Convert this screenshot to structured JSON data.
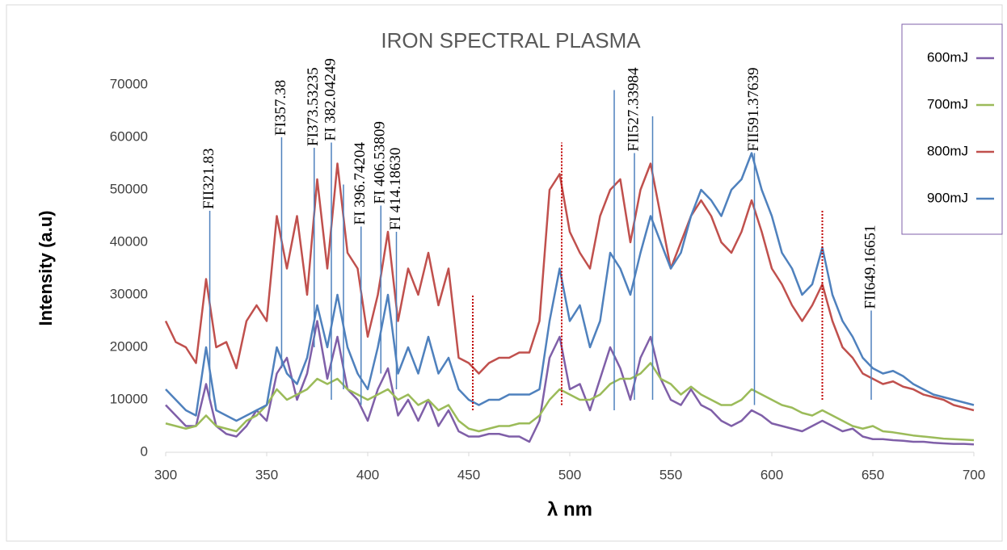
{
  "chart_data": {
    "type": "line",
    "title": "IRON SPECTRAL PLASMA",
    "x_label": "λ nm",
    "y_label": "Intensity (a.u)",
    "x": [
      300,
      305,
      310,
      315,
      320,
      325,
      330,
      335,
      340,
      345,
      350,
      355,
      360,
      365,
      370,
      375,
      380,
      385,
      390,
      395,
      400,
      405,
      410,
      415,
      420,
      425,
      430,
      435,
      440,
      445,
      450,
      455,
      460,
      465,
      470,
      475,
      480,
      485,
      490,
      495,
      500,
      505,
      510,
      515,
      520,
      525,
      530,
      535,
      540,
      545,
      550,
      555,
      560,
      565,
      570,
      575,
      580,
      585,
      590,
      595,
      600,
      605,
      610,
      615,
      620,
      625,
      630,
      635,
      640,
      645,
      650,
      655,
      660,
      665,
      670,
      675,
      680,
      685,
      690,
      695,
      700
    ],
    "series": [
      {
        "name": "600mJ",
        "color": "#7f5fa8",
        "values": [
          9000,
          7000,
          5000,
          5000,
          13000,
          5000,
          3500,
          3000,
          5000,
          8000,
          6000,
          15000,
          18000,
          10000,
          15000,
          25000,
          14000,
          22000,
          12000,
          10000,
          6000,
          12000,
          16000,
          7000,
          10000,
          6000,
          10000,
          5000,
          8000,
          4000,
          3000,
          3000,
          3500,
          3500,
          3000,
          3000,
          2000,
          6000,
          18000,
          22000,
          12000,
          13000,
          8000,
          14000,
          20000,
          16000,
          10000,
          18000,
          22000,
          14000,
          10000,
          9000,
          12000,
          9000,
          8000,
          6000,
          5000,
          6000,
          8000,
          7000,
          5500,
          5000,
          4500,
          4000,
          5000,
          6000,
          5000,
          4000,
          4500,
          3000,
          2500,
          2500,
          2300,
          2200,
          2000,
          2000,
          1800,
          1700,
          1600,
          1600,
          1500
        ]
      },
      {
        "name": "700mJ",
        "color": "#9bbb59",
        "values": [
          5500,
          5000,
          4500,
          5000,
          7000,
          5000,
          4500,
          4000,
          6000,
          7000,
          9000,
          12000,
          10000,
          11000,
          12000,
          14000,
          13000,
          14000,
          12000,
          11000,
          10000,
          11000,
          12000,
          10000,
          11000,
          9000,
          10000,
          8000,
          9000,
          6000,
          4500,
          4000,
          4500,
          5000,
          5000,
          5500,
          5500,
          7000,
          10000,
          12000,
          11000,
          10000,
          10000,
          11000,
          13000,
          14000,
          14000,
          15000,
          17000,
          14000,
          13000,
          11000,
          12500,
          11000,
          10000,
          9000,
          9000,
          10000,
          12000,
          11000,
          10000,
          9000,
          8500,
          7500,
          7000,
          8000,
          7000,
          6000,
          5000,
          4500,
          5000,
          4000,
          3800,
          3500,
          3200,
          3000,
          2800,
          2600,
          2500,
          2400,
          2300
        ]
      },
      {
        "name": "800mJ",
        "color": "#c0504d",
        "values": [
          25000,
          21000,
          20000,
          17000,
          33000,
          20000,
          21000,
          16000,
          25000,
          28000,
          25000,
          45000,
          35000,
          45000,
          30000,
          52000,
          35000,
          55000,
          38000,
          35000,
          22000,
          30000,
          42000,
          25000,
          35000,
          30000,
          38000,
          28000,
          35000,
          18000,
          17000,
          15000,
          17000,
          18000,
          18000,
          19000,
          19000,
          25000,
          50000,
          53000,
          42000,
          38000,
          35000,
          45000,
          50000,
          52000,
          40000,
          50000,
          55000,
          45000,
          35000,
          40000,
          45000,
          48000,
          45000,
          40000,
          38000,
          42000,
          48000,
          42000,
          35000,
          32000,
          28000,
          25000,
          28000,
          32000,
          25000,
          20000,
          18000,
          15000,
          14000,
          13000,
          13500,
          12500,
          12000,
          11000,
          10500,
          10000,
          9000,
          8500,
          8000
        ]
      },
      {
        "name": "900mJ",
        "color": "#4f81bd",
        "values": [
          12000,
          10000,
          8000,
          7000,
          20000,
          8000,
          7000,
          6000,
          7000,
          8000,
          9000,
          20000,
          15000,
          13000,
          18000,
          28000,
          20000,
          30000,
          20000,
          15000,
          12000,
          20000,
          30000,
          15000,
          20000,
          15000,
          22000,
          15000,
          18000,
          12000,
          10000,
          9000,
          10000,
          10000,
          11000,
          11000,
          11000,
          12000,
          25000,
          35000,
          25000,
          28000,
          20000,
          25000,
          38000,
          35000,
          30000,
          38000,
          45000,
          40000,
          35000,
          38000,
          45000,
          50000,
          48000,
          45000,
          50000,
          52000,
          57000,
          50000,
          45000,
          38000,
          35000,
          30000,
          32000,
          39000,
          30000,
          25000,
          22000,
          18000,
          16000,
          15000,
          15500,
          14500,
          13000,
          12000,
          11000,
          10500,
          10000,
          9500,
          9000
        ]
      }
    ],
    "annotations": [
      {
        "label": "FII321.83",
        "x": 321.83,
        "y": [
          10000,
          46000
        ]
      },
      {
        "label": "FI357.38",
        "x": 357.38,
        "y": [
          16000,
          60000
        ]
      },
      {
        "label": "FI373.53235",
        "x": 373.5,
        "y": [
          20000,
          58000
        ]
      },
      {
        "label": "FI 382.04249",
        "x": 382,
        "y": [
          10000,
          59000
        ]
      },
      {
        "label": null,
        "x": 388,
        "y": [
          12000,
          51000
        ]
      },
      {
        "label": "FI 396.74204",
        "x": 396.7,
        "y": [
          9000,
          43000
        ]
      },
      {
        "label": "FI 406.53809",
        "x": 406.5,
        "y": [
          15000,
          47000
        ]
      },
      {
        "label": "FI 414.18630",
        "x": 414.2,
        "y": [
          12000,
          42000
        ]
      },
      {
        "label": null,
        "x": 522,
        "y": [
          8000,
          69000
        ]
      },
      {
        "label": "FII527.33984",
        "x": 532,
        "y": [
          10000,
          57000
        ]
      },
      {
        "label": null,
        "x": 541,
        "y": [
          10000,
          64000
        ]
      },
      {
        "label": "FII591.37639",
        "x": 591.4,
        "y": [
          9000,
          57000
        ]
      },
      {
        "label": "FII649.16651",
        "x": 649.2,
        "y": [
          10000,
          27000
        ]
      }
    ],
    "dotted_lines": [
      {
        "x": 452,
        "y": [
          8000,
          30000
        ]
      },
      {
        "x": 496,
        "y": [
          9000,
          59000
        ]
      },
      {
        "x": 625,
        "y": [
          10000,
          46000
        ]
      }
    ],
    "xlim": [
      300,
      700
    ],
    "xticks": [
      300,
      350,
      400,
      450,
      500,
      550,
      600,
      650,
      700
    ],
    "ylim": [
      0,
      70000
    ],
    "yticks": [
      0,
      10000,
      20000,
      30000,
      40000,
      50000,
      60000,
      70000
    ],
    "grid": false,
    "legend": "right"
  }
}
